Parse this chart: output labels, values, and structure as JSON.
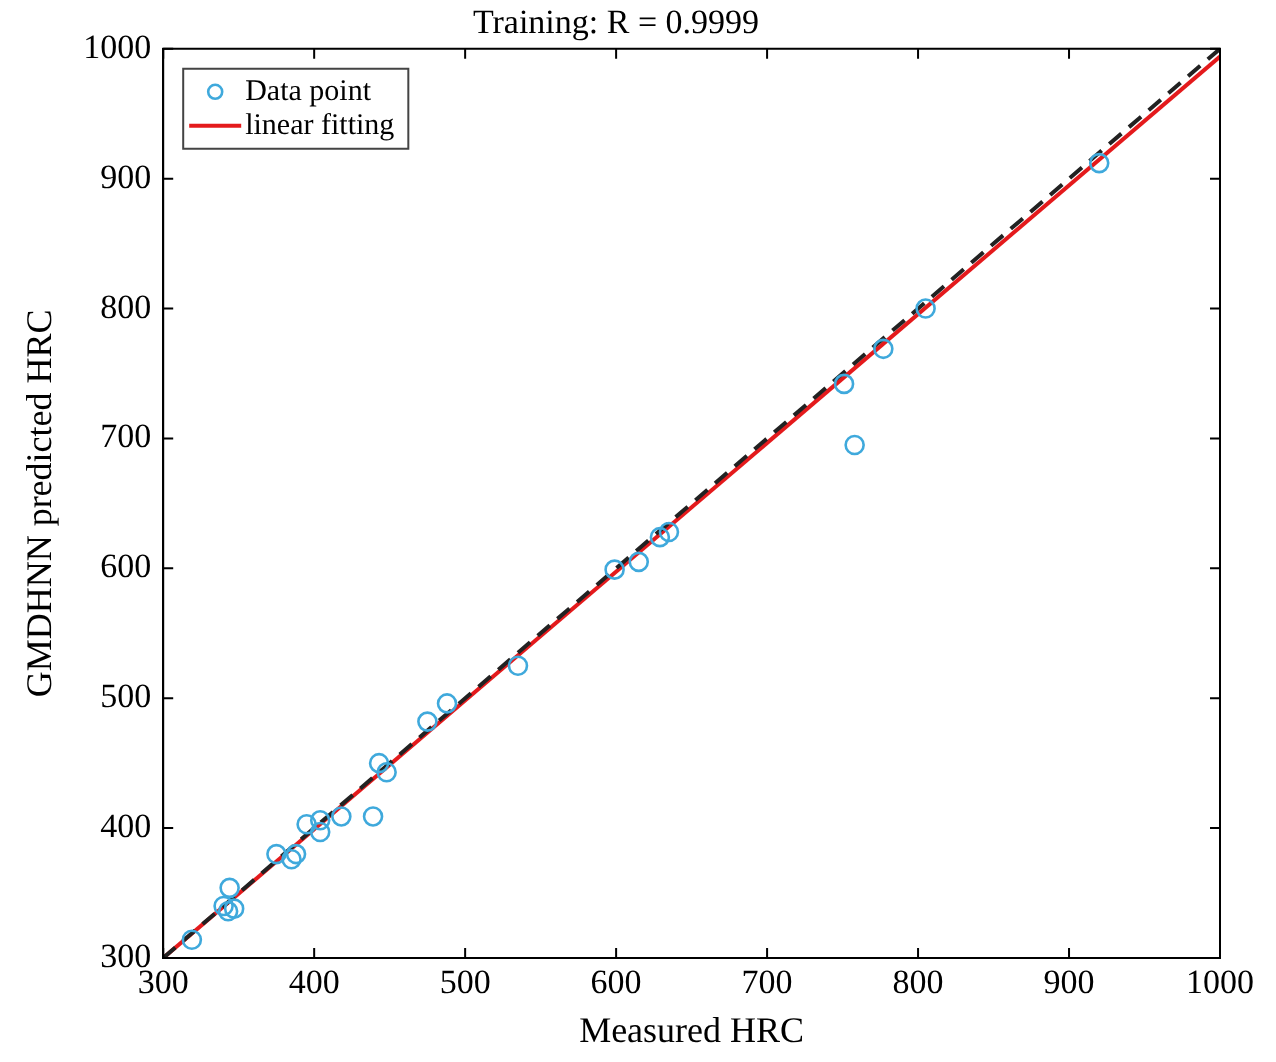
{
  "chart_data": {
    "type": "scatter",
    "title": "Training: R = 0.9999",
    "xlabel": "Measured HRC",
    "ylabel": "GMDHNN predicted HRC",
    "xlim": [
      300,
      1000
    ],
    "xticks": [
      300,
      400,
      500,
      600,
      700,
      800,
      900,
      1000
    ],
    "ylim": [
      300,
      1000
    ],
    "yticks": [
      300,
      400,
      500,
      600,
      700,
      800,
      900,
      1000
    ],
    "grid": false,
    "legend": "top left",
    "marker": "circle",
    "series": [
      {
        "name": "Data point",
        "color": "#3fa9dc",
        "x": [
          319,
          344,
          340,
          343,
          347,
          375,
          385,
          388,
          395,
          404,
          404,
          418,
          439,
          443,
          448,
          475,
          488,
          535,
          599,
          615,
          629,
          635,
          751,
          758,
          777,
          805,
          920
        ],
        "values": [
          314,
          354,
          340,
          336,
          338,
          380,
          376,
          380,
          403,
          406,
          397,
          409,
          409,
          450,
          443,
          482,
          496,
          525,
          599,
          605,
          624,
          628,
          742,
          695,
          769,
          800,
          912
        ]
      },
      {
        "name": "linear fitting",
        "type": "line",
        "color": "#e41a1c",
        "marker": "none",
        "line_style": "solid",
        "x": [
          300,
          1000
        ],
        "values": [
          300,
          994
        ]
      },
      {
        "type": "line",
        "color": "#222222",
        "marker": "none",
        "line_style": "dashed",
        "x": [
          300,
          1000
        ],
        "values": [
          300,
          1000
        ]
      }
    ]
  }
}
